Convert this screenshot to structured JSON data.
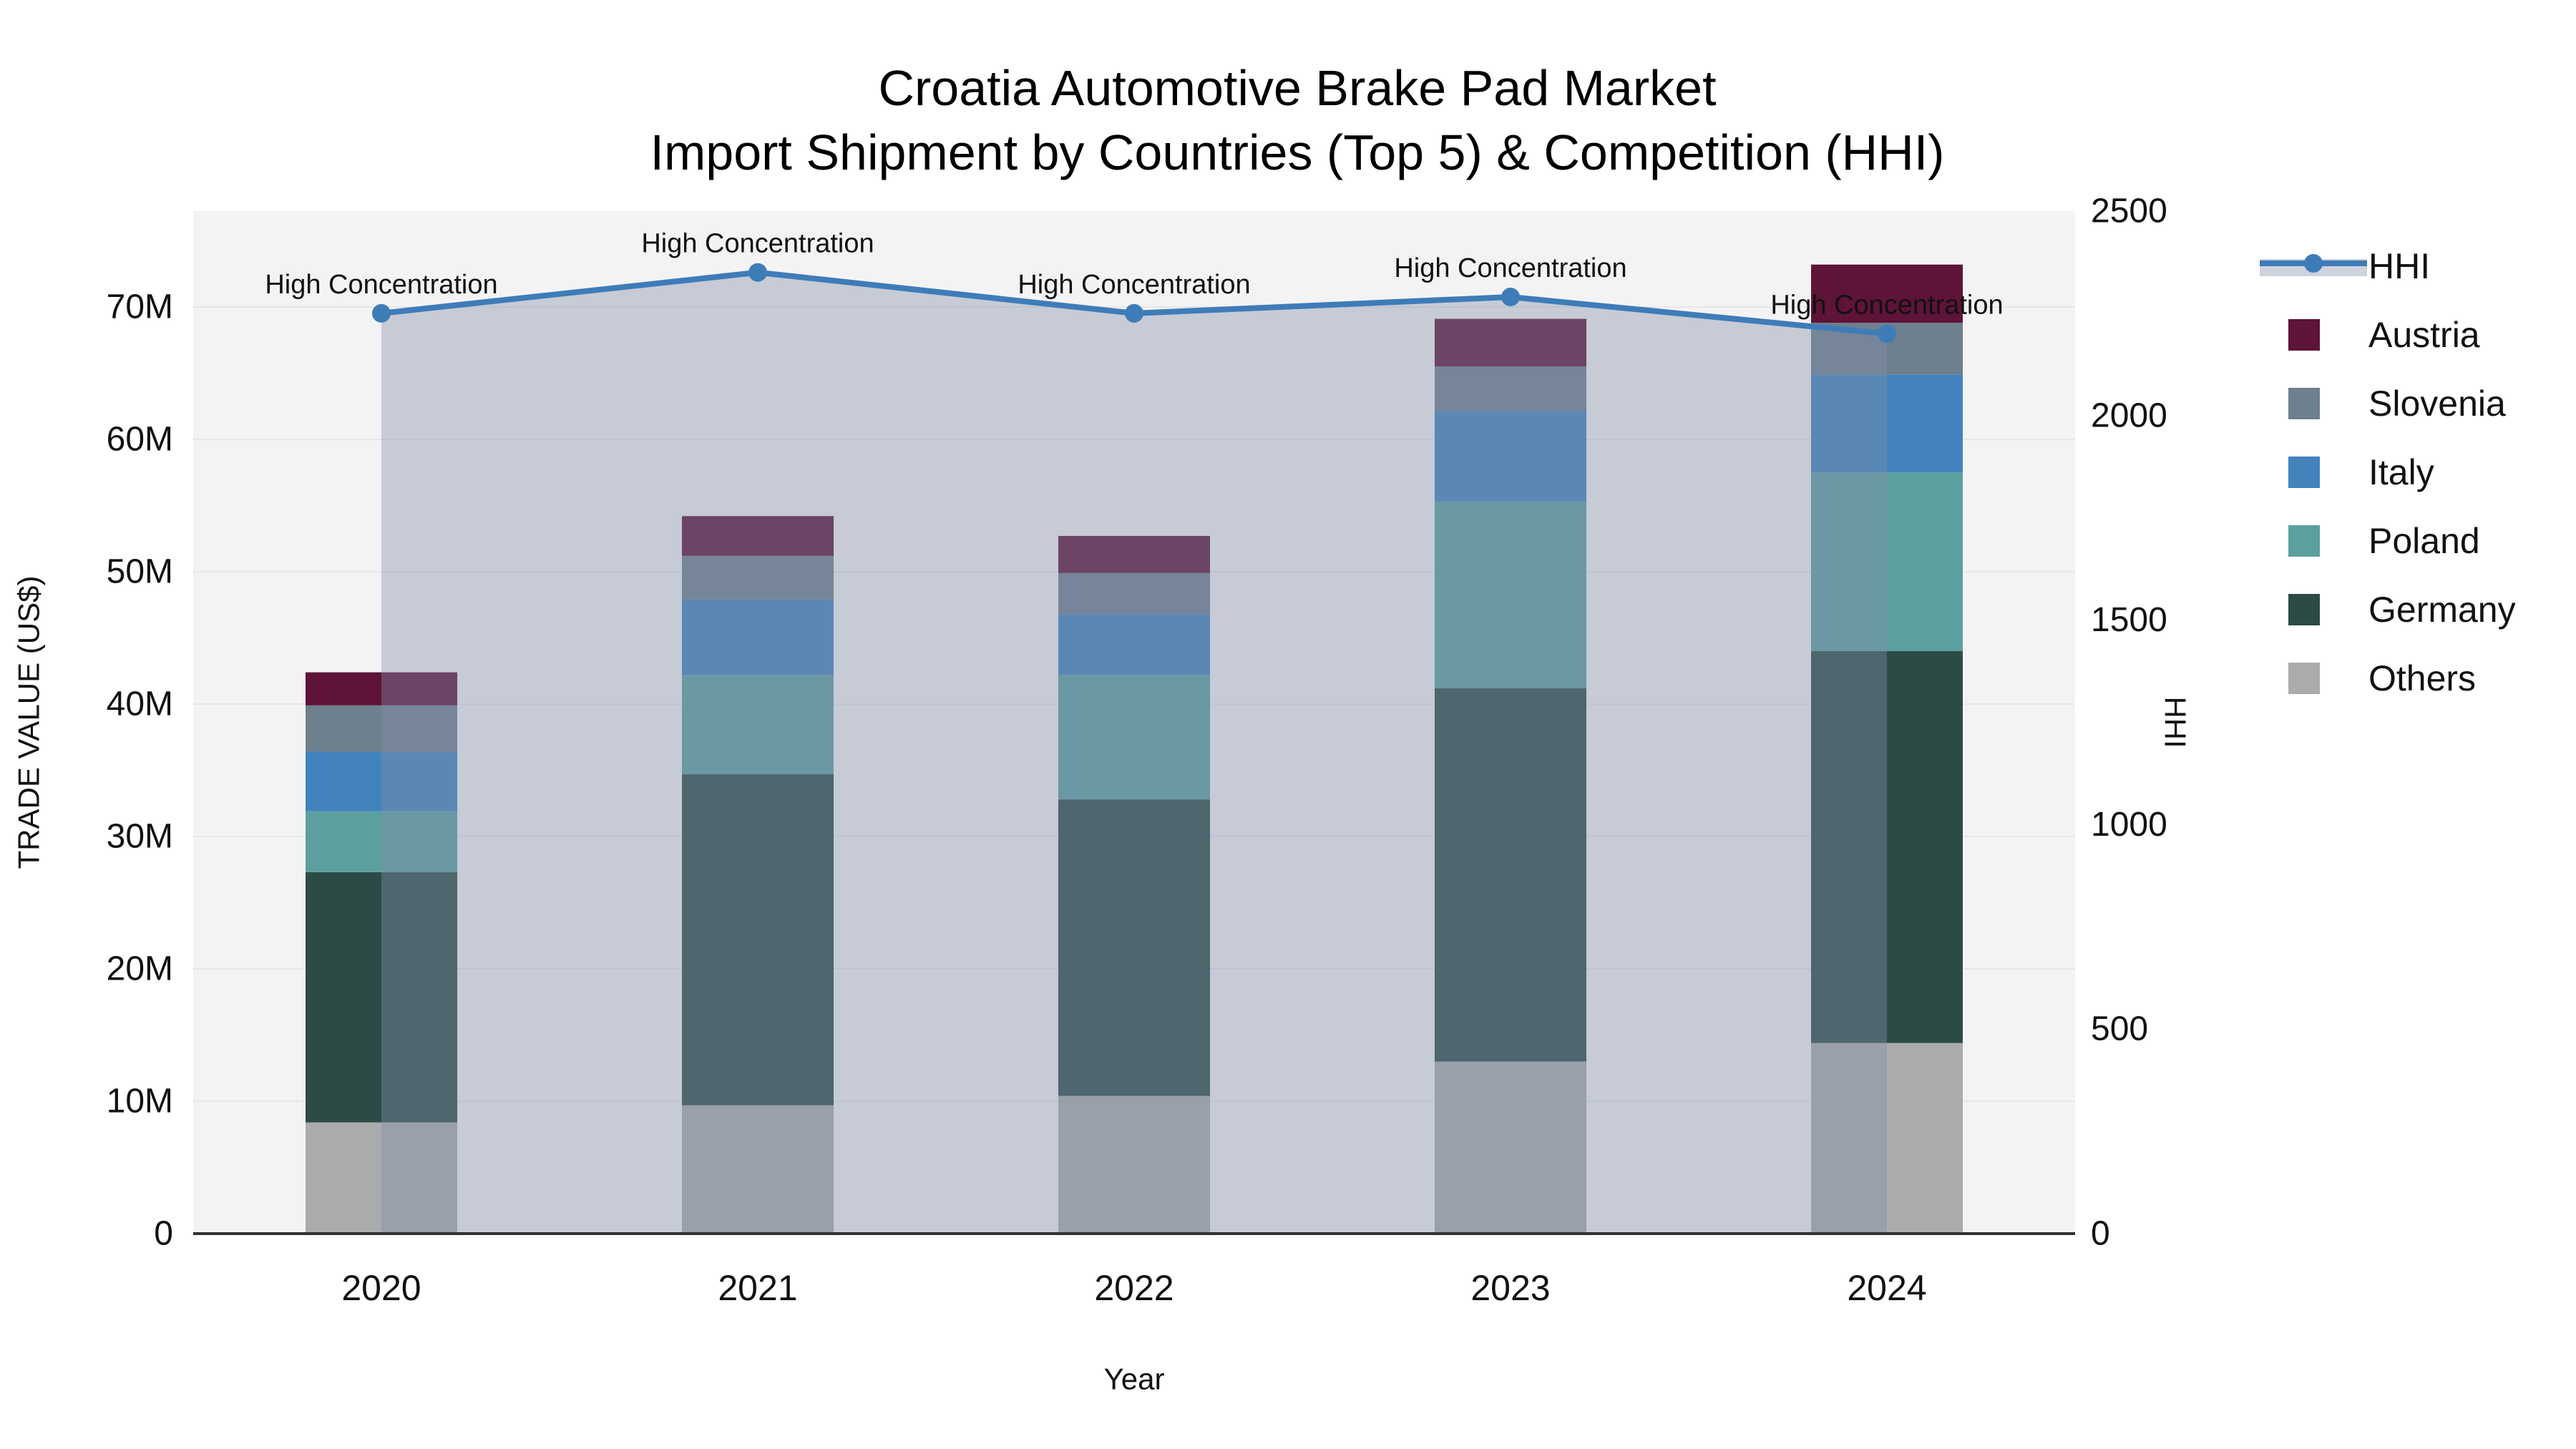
{
  "title": {
    "line1": "Croatia Automotive Brake Pad Market",
    "line2": "Import Shipment by Countries (Top 5) & Competition (HHI)"
  },
  "axes": {
    "x": {
      "label": "Year",
      "categories": [
        "2020",
        "2021",
        "2022",
        "2023",
        "2024"
      ]
    },
    "left": {
      "label": "TRADE VALUE (US$)",
      "ticks": [
        {
          "label": "0",
          "value": 0
        },
        {
          "label": "10M",
          "value": 10
        },
        {
          "label": "20M",
          "value": 20
        },
        {
          "label": "30M",
          "value": 30
        },
        {
          "label": "40M",
          "value": 40
        },
        {
          "label": "50M",
          "value": 50
        },
        {
          "label": "60M",
          "value": 60
        },
        {
          "label": "70M",
          "value": 70
        }
      ],
      "max": 77.24
    },
    "right": {
      "label": "HHI",
      "ticks": [
        {
          "label": "0",
          "value": 0
        },
        {
          "label": "500",
          "value": 500
        },
        {
          "label": "1000",
          "value": 1000
        },
        {
          "label": "1500",
          "value": 1500
        },
        {
          "label": "2000",
          "value": 2000
        },
        {
          "label": "2500",
          "value": 2500
        }
      ],
      "max": 2500
    }
  },
  "colors": {
    "austria": "#5e1338",
    "slovenia": "#6e7f8e",
    "italy": "#4283bd",
    "poland": "#5b9f9f",
    "germany": "#2c4b47",
    "others": "#a9abac",
    "hhi_line": "#3e7cb8",
    "area_fill": "rgba(129,143,169,0.4)",
    "plot_bg": "#f4f3f4",
    "grid": "#e7e7e9",
    "baseline": "#323232"
  },
  "legend": [
    {
      "label": "HHI",
      "type": "line"
    },
    {
      "label": "Austria",
      "type": "box",
      "color": "#5e1338"
    },
    {
      "label": "Slovenia",
      "type": "box",
      "color": "#6e7f8e"
    },
    {
      "label": "Italy",
      "type": "box",
      "color": "#4283bd"
    },
    {
      "label": "Poland",
      "type": "box",
      "color": "#5b9f9f"
    },
    {
      "label": "Germany",
      "type": "box",
      "color": "#2c4b47"
    },
    {
      "label": "Others",
      "type": "box",
      "color": "#a9abac"
    }
  ],
  "chart_data": {
    "type": "bar",
    "subtype": "stacked-bar-with-line",
    "title": "Croatia Automotive Brake Pad Market — Import Shipment by Countries (Top 5) & Competition (HHI)",
    "xlabel": "Year",
    "ylabel_left": "TRADE VALUE (US$)",
    "ylabel_right": "HHI",
    "units": "million US$",
    "categories": [
      "2020",
      "2021",
      "2022",
      "2023",
      "2024"
    ],
    "stack_order_bottom_to_top": [
      "Others",
      "Germany",
      "Poland",
      "Italy",
      "Slovenia",
      "Austria"
    ],
    "series": [
      {
        "name": "Others",
        "color": "#a9abac",
        "values": [
          8.4,
          9.7,
          10.4,
          13.0,
          14.4
        ]
      },
      {
        "name": "Germany",
        "color": "#2c4b47",
        "values": [
          18.9,
          25.0,
          22.4,
          28.2,
          29.6
        ]
      },
      {
        "name": "Poland",
        "color": "#5b9f9f",
        "values": [
          4.6,
          7.5,
          9.4,
          14.1,
          13.5
        ]
      },
      {
        "name": "Italy",
        "color": "#4283bd",
        "values": [
          4.5,
          5.7,
          4.6,
          6.8,
          7.4
        ]
      },
      {
        "name": "Slovenia",
        "color": "#6e7f8e",
        "values": [
          3.5,
          3.3,
          3.1,
          3.4,
          3.9
        ]
      },
      {
        "name": "Austria",
        "color": "#5e1338",
        "values": [
          2.5,
          3.0,
          2.8,
          3.6,
          4.4
        ]
      }
    ],
    "totals": [
      42.4,
      54.2,
      52.7,
      69.1,
      73.2
    ],
    "line_series": {
      "name": "HHI",
      "axis": "right",
      "color": "#3e7cb8",
      "values": [
        2250,
        2350,
        2250,
        2290,
        2200
      ],
      "area_fill": "rgba(129,143,169,0.4)"
    },
    "annotations": [
      {
        "x": "2020",
        "text": "High Concentration"
      },
      {
        "x": "2021",
        "text": "High Concentration"
      },
      {
        "x": "2022",
        "text": "High Concentration"
      },
      {
        "x": "2023",
        "text": "High Concentration"
      },
      {
        "x": "2024",
        "text": "High Concentration"
      }
    ],
    "ylim_left": [
      0,
      77.24
    ],
    "ylim_right": [
      0,
      2500
    ],
    "grid": true,
    "legend_position": "right"
  }
}
